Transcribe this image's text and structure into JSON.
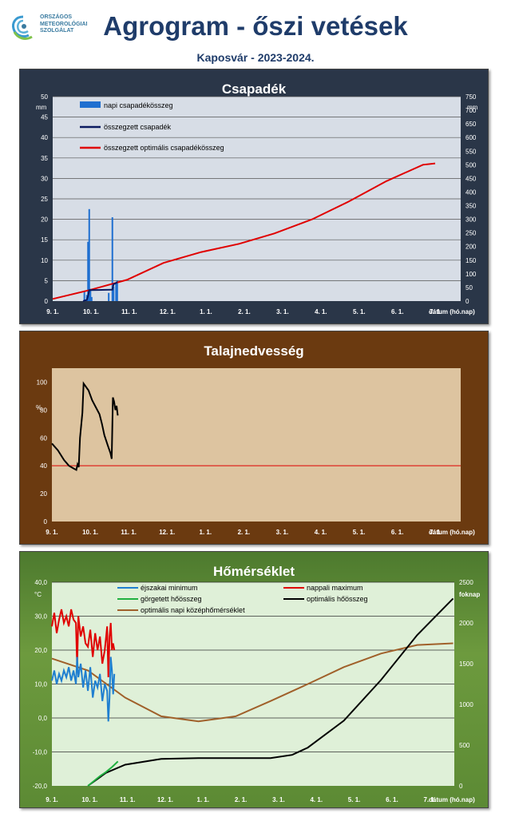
{
  "logo": {
    "line1": "ORSZÁGOS",
    "line2": "METEOROLÓGIAI",
    "line3": "SZOLGÁLAT"
  },
  "header": {
    "title": "Agrogram - őszi vetések",
    "subtitle": "Kaposvár - 2023-2024."
  },
  "colors": {
    "precip_bg": "#2a3648",
    "soil_bg": "#6b3a10",
    "temp_bg": "#5c8a34"
  },
  "chart_data": [
    {
      "type": "bar",
      "title": "Csapadék",
      "ylabel": "mm",
      "y2label": "mm",
      "xlabel": "dátum (hó.nap)",
      "x_ticks": [
        "9. 1.",
        "10. 1.",
        "11. 1.",
        "12. 1.",
        "1. 1.",
        "2. 1.",
        "3. 1.",
        "4. 1.",
        "5. 1.",
        "6. 1.",
        "7. 1."
      ],
      "ylim": [
        0,
        50
      ],
      "y_ticks": [
        "0",
        "5",
        "10",
        "15",
        "20",
        "25",
        "30",
        "35",
        "40",
        "45",
        "50"
      ],
      "y2lim": [
        0,
        750
      ],
      "y2_ticks": [
        "0",
        "50",
        "100",
        "150",
        "200",
        "250",
        "300",
        "350",
        "400",
        "450",
        "500",
        "550",
        "600",
        "650",
        "700",
        "750"
      ],
      "legend": [
        {
          "name": "napi csapadékösszeg",
          "color": "#1f6fd0"
        },
        {
          "name": "összegzett csapadék",
          "color": "#0a1a60"
        },
        {
          "name": "összegzett optimális csapadékösszeg",
          "color": "#e00000"
        }
      ],
      "daily_precip": [
        {
          "day": 26,
          "value": 2.5
        },
        {
          "day": 28,
          "value": 1.5
        },
        {
          "day": 29,
          "value": 14.5
        },
        {
          "day": 30,
          "value": 22.5
        },
        {
          "day": 31,
          "value": 3.0
        },
        {
          "day": 32,
          "value": 1.0
        },
        {
          "day": 46,
          "value": 2.0
        },
        {
          "day": 49,
          "value": 20.5
        },
        {
          "day": 50,
          "value": 3.5
        },
        {
          "day": 52,
          "value": 4.5
        },
        {
          "day": 53,
          "value": 5.0
        }
      ],
      "cumulative_precip": [
        {
          "day": 25,
          "value": 0
        },
        {
          "day": 26,
          "value": 2
        },
        {
          "day": 28,
          "value": 4
        },
        {
          "day": 29,
          "value": 18
        },
        {
          "day": 30,
          "value": 40
        },
        {
          "day": 32,
          "value": 40
        },
        {
          "day": 48,
          "value": 42
        },
        {
          "day": 49,
          "value": 42
        },
        {
          "day": 50,
          "value": 62
        },
        {
          "day": 52,
          "value": 66
        },
        {
          "day": 53,
          "value": 70
        }
      ],
      "optimal_cumulative": [
        {
          "day": 0,
          "value": 8
        },
        {
          "day": 30,
          "value": 40
        },
        {
          "day": 61,
          "value": 78
        },
        {
          "day": 91,
          "value": 140
        },
        {
          "day": 122,
          "value": 180
        },
        {
          "day": 153,
          "value": 210
        },
        {
          "day": 182,
          "value": 248
        },
        {
          "day": 213,
          "value": 300
        },
        {
          "day": 243,
          "value": 365
        },
        {
          "day": 274,
          "value": 440
        },
        {
          "day": 304,
          "value": 500
        },
        {
          "day": 314,
          "value": 505
        }
      ]
    },
    {
      "type": "line",
      "title": "Talajnedvesség",
      "ylabel": "%",
      "xlabel": "dátum (hó.nap)",
      "x_ticks": [
        "9. 1.",
        "10. 1.",
        "11. 1.",
        "12. 1.",
        "1. 1.",
        "2. 1.",
        "3. 1.",
        "4. 1.",
        "5. 1.",
        "6. 1.",
        "7. 1."
      ],
      "ylim": [
        0,
        110
      ],
      "y_ticks": [
        "0",
        "20",
        "40",
        "60",
        "80",
        "100"
      ],
      "soil_moisture": [
        {
          "day": 0,
          "value": 56
        },
        {
          "day": 5,
          "value": 51
        },
        {
          "day": 10,
          "value": 44
        },
        {
          "day": 14,
          "value": 40
        },
        {
          "day": 18,
          "value": 38
        },
        {
          "day": 20,
          "value": 37
        },
        {
          "day": 21,
          "value": 41
        },
        {
          "day": 22,
          "value": 39
        },
        {
          "day": 23,
          "value": 60
        },
        {
          "day": 25,
          "value": 78
        },
        {
          "day": 26,
          "value": 99
        },
        {
          "day": 30,
          "value": 94
        },
        {
          "day": 33,
          "value": 87
        },
        {
          "day": 36,
          "value": 82
        },
        {
          "day": 39,
          "value": 77
        },
        {
          "day": 41,
          "value": 70
        },
        {
          "day": 43,
          "value": 62
        },
        {
          "day": 46,
          "value": 54
        },
        {
          "day": 48,
          "value": 49
        },
        {
          "day": 49,
          "value": 45
        },
        {
          "day": 50,
          "value": 89
        },
        {
          "day": 51,
          "value": 86
        },
        {
          "day": 52,
          "value": 80
        },
        {
          "day": 53,
          "value": 83
        },
        {
          "day": 54,
          "value": 76
        }
      ],
      "threshold": {
        "value": 40,
        "color": "#e00000"
      }
    },
    {
      "type": "line",
      "title": "Hőmérséklet",
      "ylabel": "°C",
      "y2label": "foknap",
      "xlabel": "dátum (hó.nap)",
      "x_ticks": [
        "9. 1.",
        "10. 1.",
        "11. 1.",
        "12. 1.",
        "1. 1.",
        "2. 1.",
        "3. 1.",
        "4. 1.",
        "5. 1.",
        "6. 1.",
        "7. 1."
      ],
      "ylim": [
        -20,
        40
      ],
      "y_ticks": [
        "-20,0",
        "-10,0",
        "0,0",
        "10,0",
        "20,0",
        "30,0",
        "40,0"
      ],
      "y2lim": [
        0,
        2500
      ],
      "y2_ticks": [
        "0",
        "500",
        "1000",
        "1500",
        "2000",
        "2500"
      ],
      "legend": [
        {
          "name": "éjszakai minimum",
          "color": "#1f7fd0"
        },
        {
          "name": "nappali maximum",
          "color": "#e00000"
        },
        {
          "name": "görgetett hőösszeg",
          "color": "#20b040"
        },
        {
          "name": "optimális hőösszeg",
          "color": "#000000"
        },
        {
          "name": "optimális napi középhőmérséklet",
          "color": "#a0602a"
        }
      ],
      "min_temp": [
        {
          "day": 0,
          "value": 11
        },
        {
          "day": 2,
          "value": 14
        },
        {
          "day": 4,
          "value": 10
        },
        {
          "day": 6,
          "value": 13
        },
        {
          "day": 8,
          "value": 11
        },
        {
          "day": 10,
          "value": 14
        },
        {
          "day": 12,
          "value": 12
        },
        {
          "day": 14,
          "value": 15
        },
        {
          "day": 16,
          "value": 11
        },
        {
          "day": 18,
          "value": 14
        },
        {
          "day": 20,
          "value": 10
        },
        {
          "day": 21,
          "value": 18
        },
        {
          "day": 22,
          "value": 12
        },
        {
          "day": 24,
          "value": 16
        },
        {
          "day": 26,
          "value": 9
        },
        {
          "day": 28,
          "value": 14
        },
        {
          "day": 30,
          "value": 8
        },
        {
          "day": 32,
          "value": 15
        },
        {
          "day": 34,
          "value": 6
        },
        {
          "day": 36,
          "value": 11
        },
        {
          "day": 38,
          "value": 9
        },
        {
          "day": 40,
          "value": 13
        },
        {
          "day": 42,
          "value": 5
        },
        {
          "day": 44,
          "value": 10
        },
        {
          "day": 46,
          "value": 8
        },
        {
          "day": 47,
          "value": -1
        },
        {
          "day": 48,
          "value": 6
        },
        {
          "day": 49,
          "value": 18
        },
        {
          "day": 50,
          "value": 14
        },
        {
          "day": 51,
          "value": 7
        },
        {
          "day": 52,
          "value": 13
        }
      ],
      "max_temp": [
        {
          "day": 0,
          "value": 27
        },
        {
          "day": 2,
          "value": 31
        },
        {
          "day": 4,
          "value": 25
        },
        {
          "day": 6,
          "value": 29
        },
        {
          "day": 8,
          "value": 32
        },
        {
          "day": 10,
          "value": 28
        },
        {
          "day": 12,
          "value": 30
        },
        {
          "day": 14,
          "value": 27
        },
        {
          "day": 16,
          "value": 32
        },
        {
          "day": 18,
          "value": 29
        },
        {
          "day": 20,
          "value": 28
        },
        {
          "day": 21,
          "value": 15
        },
        {
          "day": 22,
          "value": 30
        },
        {
          "day": 24,
          "value": 24
        },
        {
          "day": 26,
          "value": 27
        },
        {
          "day": 28,
          "value": 22
        },
        {
          "day": 30,
          "value": 21
        },
        {
          "day": 32,
          "value": 26
        },
        {
          "day": 34,
          "value": 18
        },
        {
          "day": 36,
          "value": 25
        },
        {
          "day": 38,
          "value": 20
        },
        {
          "day": 40,
          "value": 24
        },
        {
          "day": 42,
          "value": 16
        },
        {
          "day": 44,
          "value": 20
        },
        {
          "day": 46,
          "value": 27
        },
        {
          "day": 47,
          "value": 12
        },
        {
          "day": 48,
          "value": 24
        },
        {
          "day": 49,
          "value": 28
        },
        {
          "day": 50,
          "value": 20
        },
        {
          "day": 51,
          "value": 22
        },
        {
          "day": 52,
          "value": 20
        }
      ],
      "rolling_heat_sum": [
        {
          "day": 30,
          "value": 0
        },
        {
          "day": 35,
          "value": 60
        },
        {
          "day": 40,
          "value": 120
        },
        {
          "day": 45,
          "value": 170
        },
        {
          "day": 50,
          "value": 230
        },
        {
          "day": 55,
          "value": 300
        }
      ],
      "optimal_heat_sum": [
        {
          "day": 30,
          "value": 0
        },
        {
          "day": 45,
          "value": 160
        },
        {
          "day": 61,
          "value": 260
        },
        {
          "day": 91,
          "value": 330
        },
        {
          "day": 122,
          "value": 340
        },
        {
          "day": 182,
          "value": 340
        },
        {
          "day": 200,
          "value": 380
        },
        {
          "day": 213,
          "value": 470
        },
        {
          "day": 243,
          "value": 800
        },
        {
          "day": 274,
          "value": 1300
        },
        {
          "day": 304,
          "value": 1850
        },
        {
          "day": 334,
          "value": 2300
        }
      ],
      "optimal_daily_mean": [
        {
          "day": 0,
          "value": 17.5
        },
        {
          "day": 30,
          "value": 14
        },
        {
          "day": 61,
          "value": 6
        },
        {
          "day": 91,
          "value": 0.5
        },
        {
          "day": 122,
          "value": -1
        },
        {
          "day": 153,
          "value": 0.5
        },
        {
          "day": 182,
          "value": 5
        },
        {
          "day": 213,
          "value": 10
        },
        {
          "day": 243,
          "value": 15
        },
        {
          "day": 274,
          "value": 19
        },
        {
          "day": 304,
          "value": 21.5
        },
        {
          "day": 334,
          "value": 22
        }
      ]
    }
  ]
}
